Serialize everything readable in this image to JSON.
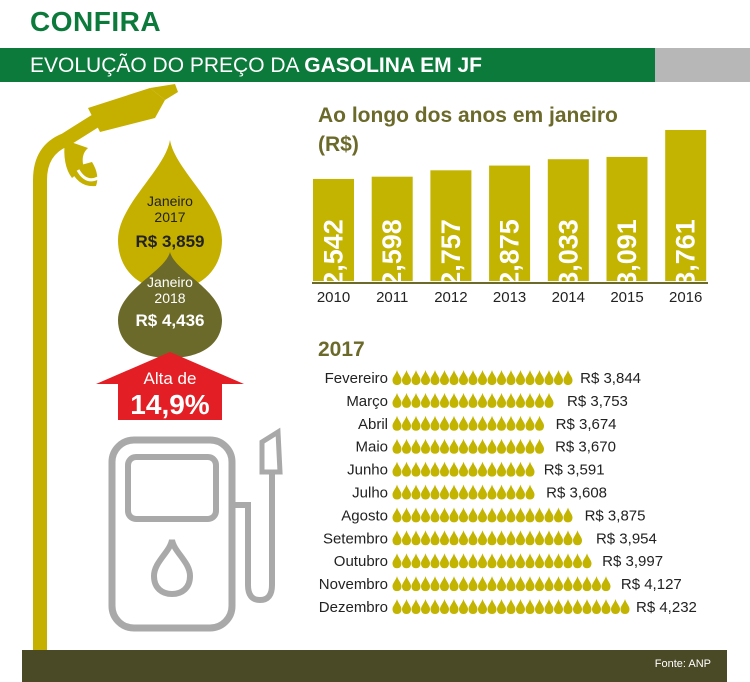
{
  "header": {
    "title": "CONFIRA",
    "subtitle_regular": "EVOLUÇÃO DO PREÇO DA ",
    "subtitle_bold": "GASOLINA EM JF"
  },
  "drops": {
    "jan2017": {
      "line1": "Janeiro",
      "line2": "2017",
      "price": "R$ 3,859"
    },
    "jan2018": {
      "line1": "Janeiro",
      "line2": "2018",
      "price": "R$ 4,436"
    }
  },
  "alta": {
    "label": "Alta de",
    "value": "14,9%"
  },
  "colors": {
    "green": "#0b7a3b",
    "gold": "#c5b000",
    "olive_dark": "#6b6a2a",
    "bar": "#c2b400",
    "red": "#e31e24",
    "pump_gray": "#a9a9a9"
  },
  "chart_data": [
    {
      "type": "bar",
      "title": "Ao longo dos anos em janeiro",
      "subtitle": "(R$)",
      "categories": [
        "2010",
        "2011",
        "2012",
        "2013",
        "2014",
        "2015",
        "2016"
      ],
      "values": [
        2.542,
        2.598,
        2.757,
        2.875,
        3.033,
        3.091,
        3.761
      ],
      "value_labels": [
        "2,542",
        "2,598",
        "2,757",
        "2,875",
        "3,033",
        "3,091",
        "3,761"
      ]
    },
    {
      "type": "bar",
      "orientation": "horizontal",
      "title": "2017",
      "categories": [
        "Fevereiro",
        "Março",
        "Abril",
        "Maio",
        "Junho",
        "Julho",
        "Agosto",
        "Setembro",
        "Outubro",
        "Novembro",
        "Dezembro"
      ],
      "values": [
        3.844,
        3.753,
        3.674,
        3.67,
        3.591,
        3.608,
        3.875,
        3.954,
        3.997,
        4.127,
        4.232
      ],
      "value_labels": [
        "R$ 3,844",
        "R$ 3,753",
        "R$ 3,674",
        "R$ 3,670",
        "R$ 3,591",
        "R$ 3,608",
        "R$ 3,875",
        "R$ 3,954",
        "R$ 3,997",
        "R$ 4,127",
        "R$ 4,232"
      ]
    }
  ],
  "source": "Fonte: ANP"
}
